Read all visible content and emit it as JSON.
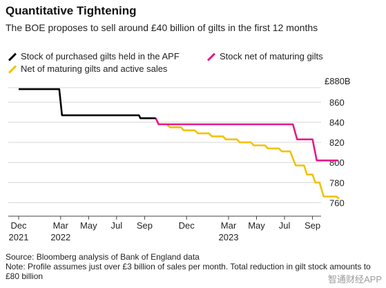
{
  "header": {
    "title": "Quantitative Tightening",
    "subtitle": "The BOE proposes to sell around £40 billion of gilts in the first 12 months"
  },
  "footer": {
    "source": "Source: Bloomberg analysis of Bank of England data",
    "note": "Note: Profile assumes just over £3 billion of sales per month. Total reduction in gilt stock amounts to £80 billion",
    "watermark": "智通财经APP"
  },
  "chart_data": {
    "type": "line",
    "title": "Quantitative Tightening",
    "y_unit_label": "£880B",
    "ylim": [
      752,
      882
    ],
    "y_ticks": [
      760,
      780,
      800,
      820,
      840,
      860
    ],
    "grid": "horizontal",
    "legend_position": "top-left",
    "x_ticks": [
      {
        "t": 0,
        "label": "Dec",
        "sub": "2021"
      },
      {
        "t": 3,
        "label": "Mar",
        "sub": "2022"
      },
      {
        "t": 5,
        "label": "May",
        "sub": ""
      },
      {
        "t": 7,
        "label": "Jul",
        "sub": ""
      },
      {
        "t": 9,
        "label": "Sep",
        "sub": ""
      },
      {
        "t": 12,
        "label": "Dec",
        "sub": ""
      },
      {
        "t": 15,
        "label": "Mar",
        "sub": "2023"
      },
      {
        "t": 17,
        "label": "May",
        "sub": ""
      },
      {
        "t": 19,
        "label": "Jul",
        "sub": ""
      },
      {
        "t": 21,
        "label": "Sep",
        "sub": ""
      }
    ],
    "series": [
      {
        "name": "Stock of purchased gilts held in the APF",
        "color": "#000000",
        "points": [
          [
            0,
            873
          ],
          [
            2.9,
            873
          ],
          [
            3.1,
            847
          ],
          [
            8.6,
            847
          ],
          [
            8.7,
            844
          ],
          [
            9.8,
            844
          ]
        ]
      },
      {
        "name": "Stock net of maturing gilts",
        "color": "#e8178a",
        "points": [
          [
            9.8,
            844
          ],
          [
            10.0,
            838
          ],
          [
            19.6,
            838
          ],
          [
            19.9,
            823
          ],
          [
            21.0,
            823
          ],
          [
            21.3,
            802
          ],
          [
            22.8,
            802
          ]
        ]
      },
      {
        "name": "Net of maturing gilts and active sales",
        "color": "#f2c200",
        "points": [
          [
            9.8,
            844
          ],
          [
            10.0,
            838
          ],
          [
            10.6,
            838
          ],
          [
            10.8,
            835
          ],
          [
            11.6,
            835
          ],
          [
            11.8,
            832
          ],
          [
            12.6,
            832
          ],
          [
            12.8,
            829
          ],
          [
            13.6,
            829
          ],
          [
            13.8,
            826
          ],
          [
            14.6,
            826
          ],
          [
            14.8,
            823
          ],
          [
            15.6,
            823
          ],
          [
            15.8,
            820
          ],
          [
            16.6,
            820
          ],
          [
            16.8,
            817
          ],
          [
            17.6,
            817
          ],
          [
            17.8,
            814
          ],
          [
            18.6,
            814
          ],
          [
            18.8,
            811
          ],
          [
            19.4,
            811
          ],
          [
            19.8,
            797
          ],
          [
            20.4,
            797
          ],
          [
            20.6,
            788
          ],
          [
            21.0,
            788
          ],
          [
            21.2,
            780
          ],
          [
            21.5,
            780
          ],
          [
            21.8,
            766
          ],
          [
            22.7,
            766
          ],
          [
            22.9,
            764
          ]
        ]
      }
    ]
  }
}
